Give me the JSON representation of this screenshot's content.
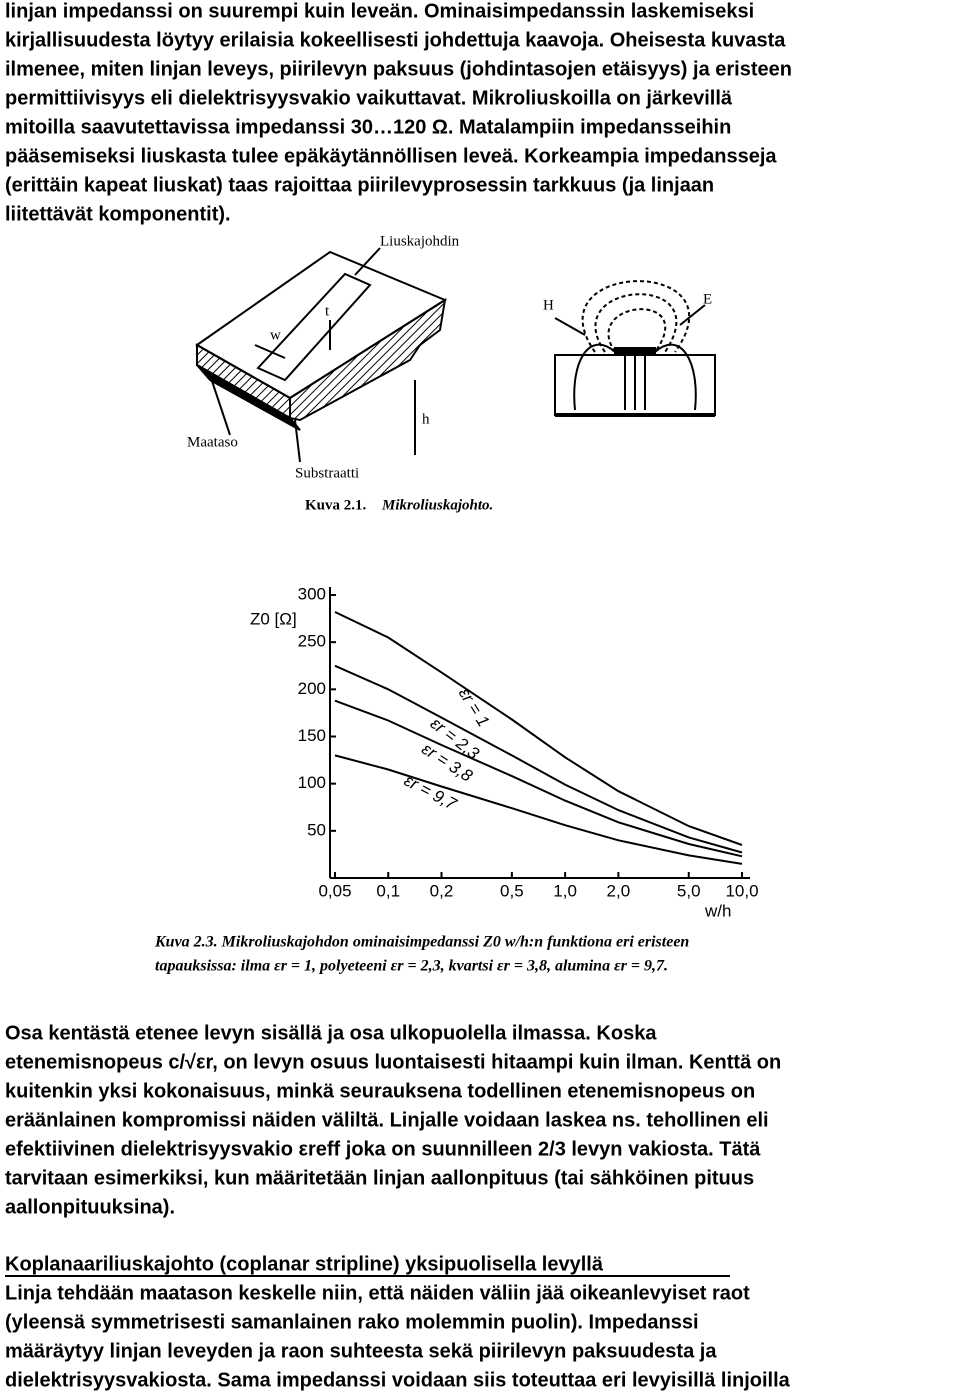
{
  "text_top": [
    "linjan impedanssi on suurempi kuin leveän. Ominaisimpedanssin laskemiseksi",
    "kirjallisuudesta löytyy erilaisia kokeellisesti johdettuja kaavoja. Oheisesta kuvasta",
    "ilmenee, miten linjan leveys, piirilevyn paksuus (johdintasojen etäisyys) ja eristeen",
    "permittiivisyys eli dielektrisyysvakio vaikuttavat. Mikroliuskoilla on järkevillä",
    "mitoilla saavutettavissa impedanssi 30…120 Ω. Matalampiin impedansseihin",
    "pääsemiseksi liuskasta tulee epäkäytännöllisen leveä. Korkeampia impedansseja",
    "(erittäin kapeat liuskat) taas rajoittaa piirilevyprosessin tarkkuus (ja linjaan",
    "liitettävät komponentit)."
  ],
  "figure1": {
    "strip": "Liuskajohdin",
    "w": "w",
    "t": "t",
    "h": "h",
    "ground": "Maataso",
    "substrate": "Substraatti",
    "H": "H",
    "E": "E",
    "caption_number": "Kuva 2.1.",
    "caption_text": "Mikroliuskajohto."
  },
  "chart_data": {
    "type": "line",
    "y_label": "Z0 [Ω]",
    "x_label": "w/h",
    "x": [
      0.05,
      0.1,
      0.2,
      0.5,
      1.0,
      2.0,
      5.0,
      10.0
    ],
    "xscale": "log",
    "xlim": [
      0.05,
      10
    ],
    "xticks": [
      {
        "value": 0.05,
        "label": "0,05"
      },
      {
        "value": 0.1,
        "label": "0,1"
      },
      {
        "value": 0.2,
        "label": "0,2"
      },
      {
        "value": 0.5,
        "label": "0,5"
      },
      {
        "value": 1.0,
        "label": "1,0"
      },
      {
        "value": 2.0,
        "label": "2,0"
      },
      {
        "value": 5.0,
        "label": "5,0"
      },
      {
        "value": 10.0,
        "label": "10,0"
      }
    ],
    "ylim": [
      0,
      300
    ],
    "yticks": [
      50,
      100,
      150,
      200,
      250,
      300
    ],
    "grid": false,
    "series": [
      {
        "name": "εr = 1",
        "color": "#000000",
        "values": [
          282,
          255,
          218,
          168,
          128,
          92,
          55,
          35
        ]
      },
      {
        "name": "εr = 2,3",
        "color": "#000000",
        "values": [
          225,
          200,
          170,
          130,
          99,
          72,
          43,
          27
        ]
      },
      {
        "name": "εr = 3,8",
        "color": "#000000",
        "values": [
          188,
          167,
          141,
          108,
          82,
          59,
          36,
          23
        ]
      },
      {
        "name": "εr = 9,7",
        "color": "#000000",
        "values": [
          130,
          115,
          97,
          74,
          56,
          40,
          24,
          15
        ]
      }
    ],
    "caption": [
      "Kuva 2.3. Mikroliuskajohdon ominaisimpedanssi Z0 w/h:n funktiona eri eristeen",
      "tapauksissa: ilma εr = 1, polyeteeni εr = 2,3, kvartsi εr = 3,8, alumina εr = 9,7."
    ]
  },
  "text_middle": [
    "Osa kentästä etenee levyn sisällä ja osa ulkopuolella ilmassa. Koska",
    "etenemisnopeus c/√εr, on levyn osuus luontaisesti hitaampi kuin ilman. Kenttä on",
    "kuitenkin yksi kokonaisuus, minkä seurauksena todellinen etenemisnopeus on",
    "eräänlainen kompromissi näiden väliltä. Linjalle voidaan laskea ns. tehollinen eli",
    "efektiivinen dielektrisyysvakio εreff joka on suunnilleen 2/3 levyn vakiosta. Tätä",
    "tarvitaan esimerkiksi, kun määritetään linjan aallonpituus (tai sähköinen pituus",
    "aallonpituuksina)."
  ],
  "heading": "Koplanaariliuskajohto (coplanar stripline) yksipuolisella levyllä",
  "text_bottom": [
    "Linja tehdään maatason keskelle niin, että näiden väliin jää oikeanlevyiset raot",
    "(yleensä symmetrisesti samanlainen rako molemmin puolin). Impedanssi",
    "määräytyy linjan leveyden ja raon suhteesta sekä piirilevyn paksuudesta ja",
    "dielektrisyysvakiosta. Sama impedanssi voidaan siis toteuttaa eri levyisillä linjoilla"
  ]
}
